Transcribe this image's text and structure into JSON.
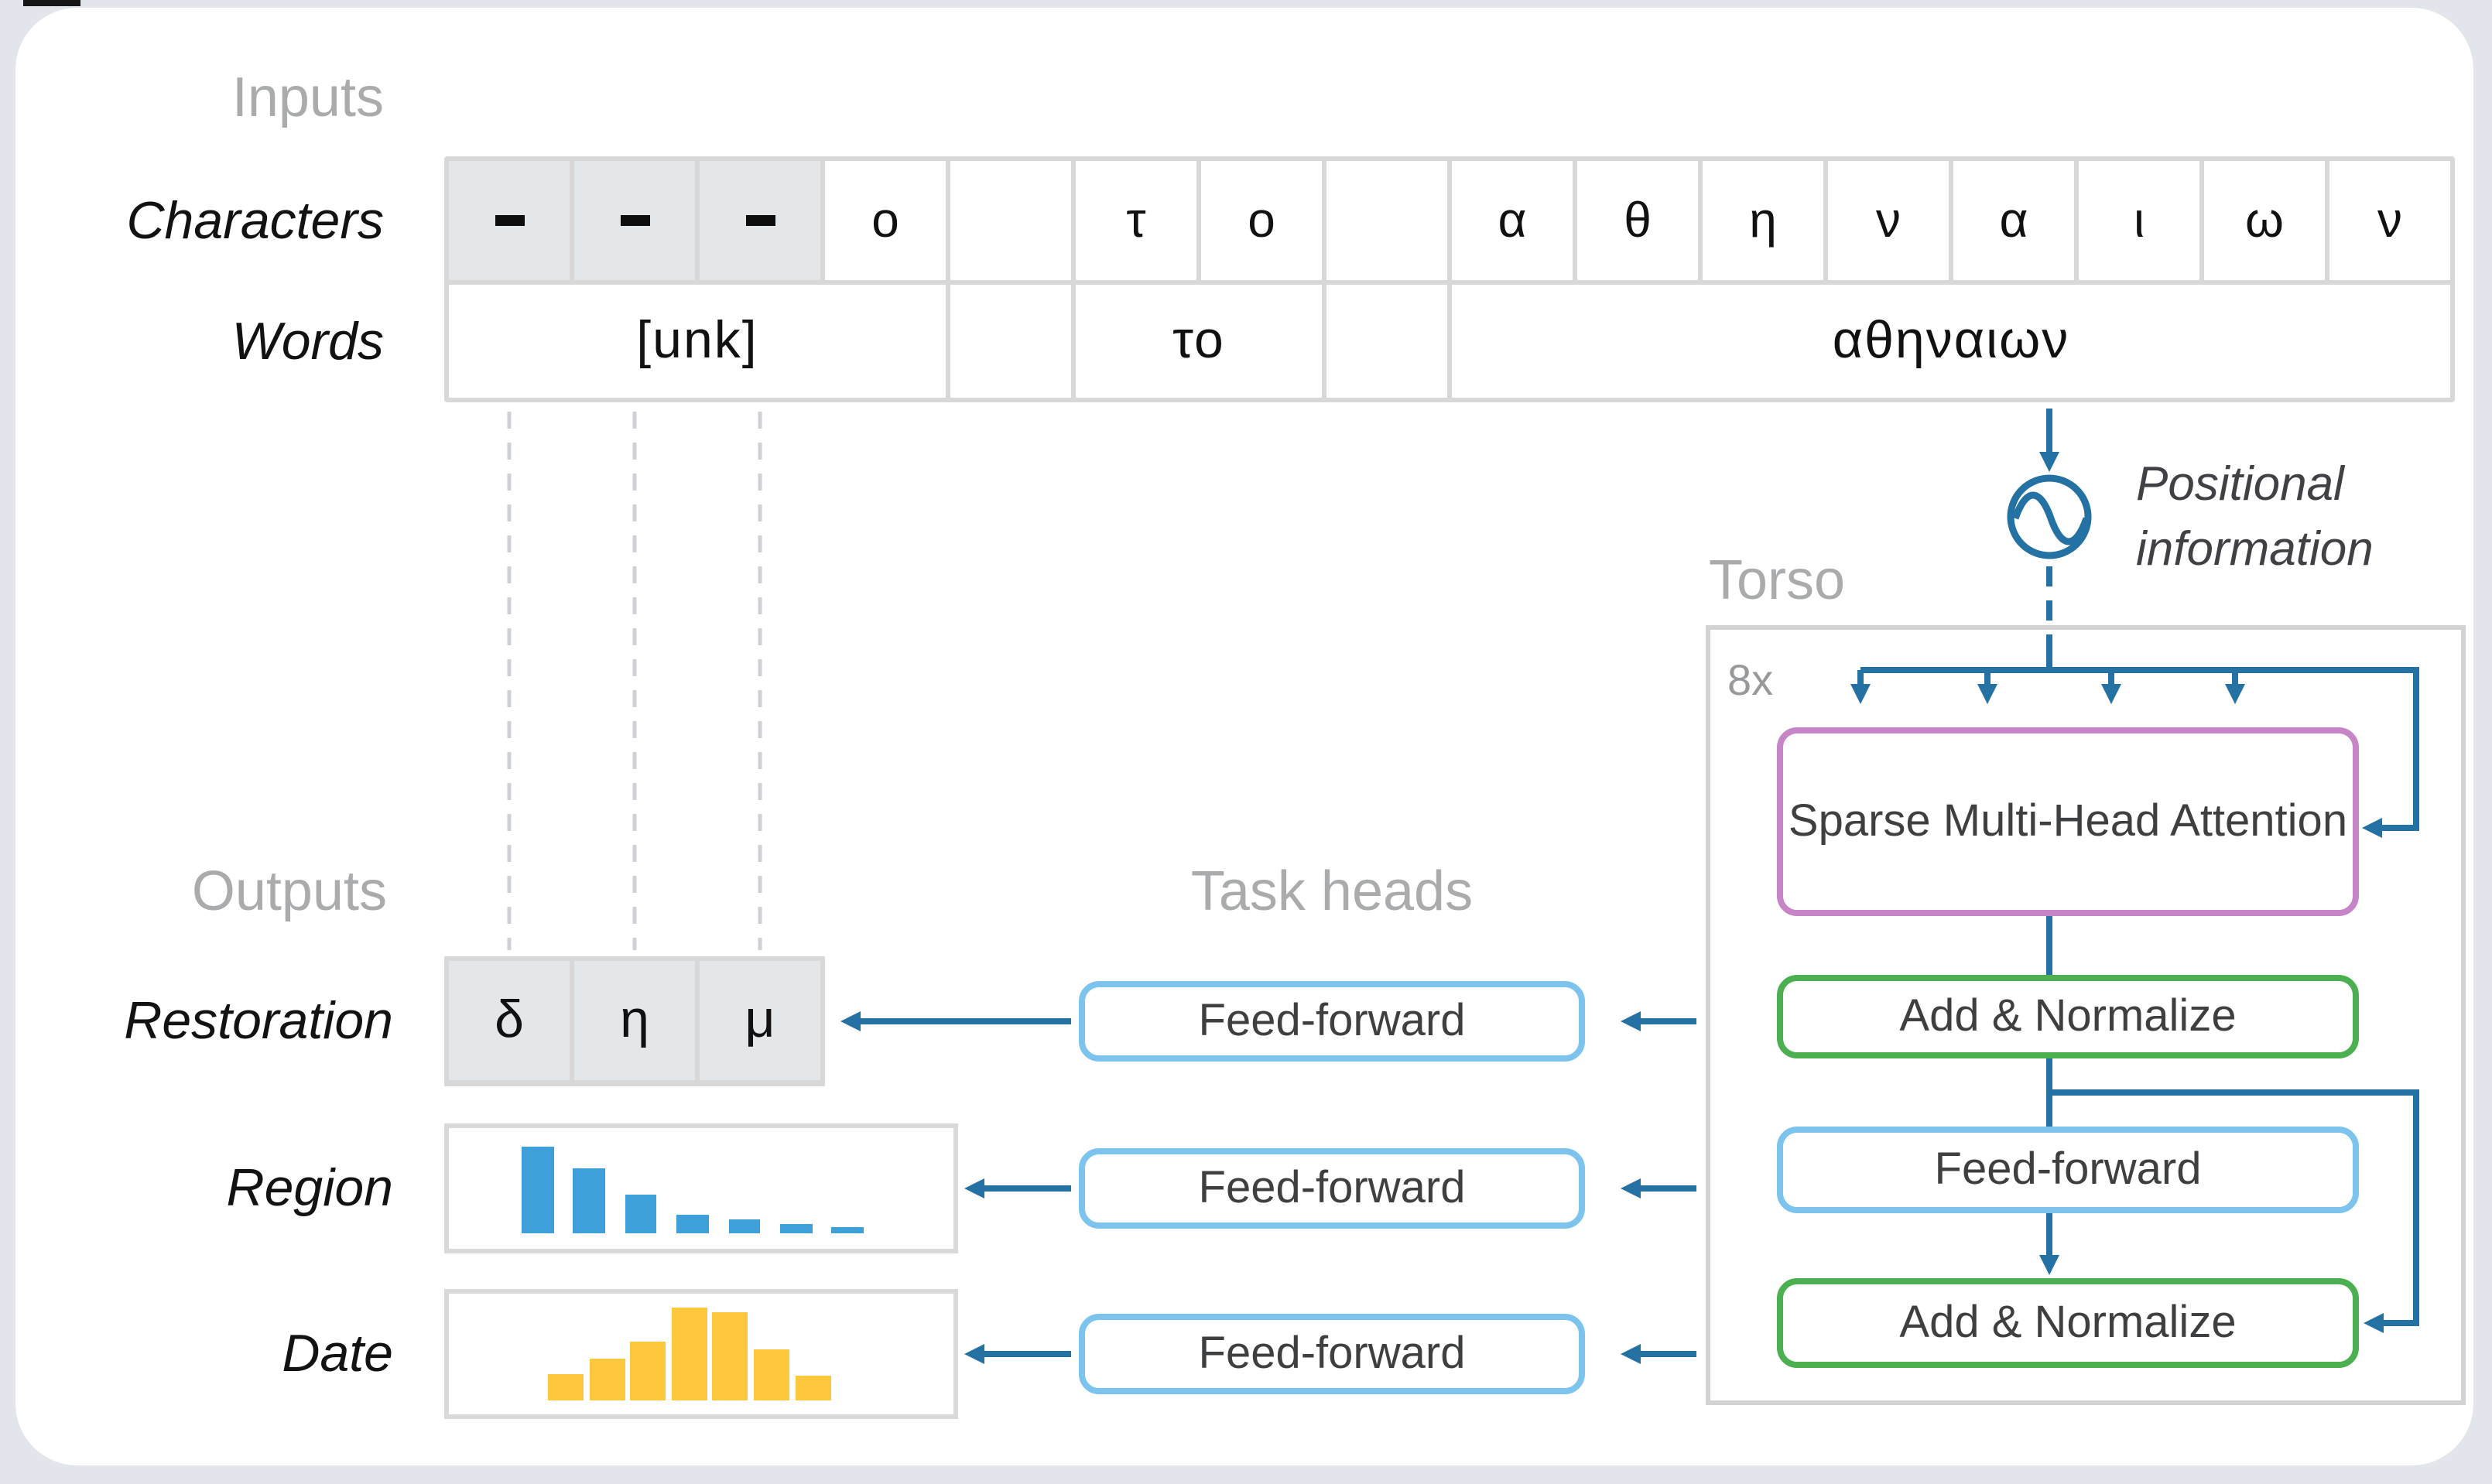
{
  "header": {
    "inputs_label": "Inputs",
    "outputs_label": "Outputs",
    "task_heads_label": "Task heads",
    "torso_label": "Torso"
  },
  "rows": {
    "characters_label": "Characters",
    "words_label": "Words"
  },
  "inputs": {
    "characters": [
      "-",
      "-",
      "-",
      "o",
      "",
      "τ",
      "o",
      "",
      "α",
      "θ",
      "η",
      "ν",
      "α",
      "ι",
      "ω",
      "ν"
    ],
    "masked_indices": [
      0,
      1,
      2
    ],
    "words": [
      {
        "text": "[unk]"
      },
      {
        "text": ""
      },
      {
        "text": "το"
      },
      {
        "text": ""
      },
      {
        "text": "αθηναιων"
      }
    ]
  },
  "positional": {
    "line1": "Positional",
    "line2": "information"
  },
  "torso": {
    "repeat_label": "8x",
    "blocks": [
      {
        "label": "Sparse Multi-Head Attention",
        "border_color": "#c685c6"
      },
      {
        "label": "Add & Normalize",
        "border_color": "#4caf50"
      },
      {
        "label": "Feed-forward",
        "border_color": "#7cc4ed"
      },
      {
        "label": "Add & Normalize",
        "border_color": "#4caf50"
      }
    ]
  },
  "task_heads": {
    "items": [
      {
        "label": "Feed-forward",
        "target": "Restoration"
      },
      {
        "label": "Feed-forward",
        "target": "Region"
      },
      {
        "label": "Feed-forward",
        "target": "Date"
      }
    ]
  },
  "outputs": {
    "restoration_label": "Restoration",
    "restoration_cells": [
      "δ",
      "η",
      "μ"
    ],
    "region_label": "Region",
    "date_label": "Date"
  },
  "chart_data": [
    {
      "name": "region",
      "type": "bar",
      "title": "Region",
      "description": "schematic probability distribution over regions; no axis labels shown",
      "values": [
        1.0,
        0.75,
        0.45,
        0.21,
        0.16,
        0.11,
        0.07
      ],
      "color": "#3da0d8",
      "axes": false
    },
    {
      "name": "date",
      "type": "bar",
      "title": "Date",
      "description": "schematic probability distribution over dates; no axis labels shown",
      "values": [
        0.28,
        0.45,
        0.63,
        1.0,
        0.95,
        0.55,
        0.27
      ],
      "color": "#fdc73e",
      "axes": false
    }
  ],
  "colors": {
    "flow_blue": "#2471a3",
    "purple_border": "#c685c6",
    "green_border": "#4caf50",
    "light_blue_border": "#7cc4ed",
    "region_bar": "#3da0d8",
    "date_bar": "#fdc73e",
    "masked_cell_fill": "#e3e7ea",
    "grid_line": "#d8d8d8",
    "section_label_gray": "#a9abad",
    "page_background": "#e3e5ec"
  }
}
